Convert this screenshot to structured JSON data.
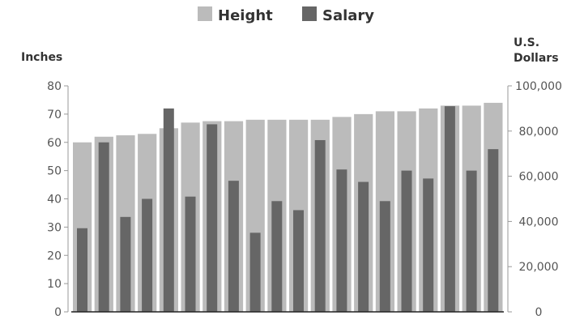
{
  "chart_data": {
    "type": "bar",
    "legend_position": "top-center",
    "grid": false,
    "y_left": {
      "label": "Inches",
      "range": [
        0,
        80
      ],
      "ticks": [
        "0",
        "10",
        "20",
        "30",
        "40",
        "50",
        "60",
        "70",
        "80"
      ]
    },
    "y_right": {
      "label_lines": [
        "U.S.",
        "Dollars"
      ],
      "range": [
        0,
        100000
      ],
      "ticks": [
        "0",
        "20,000",
        "40,000",
        "60,000",
        "80,000",
        "100,000"
      ]
    },
    "series": [
      {
        "name": "Height",
        "axis": "left",
        "color": "#bbbbbb",
        "values": [
          60,
          62,
          62.5,
          63,
          65,
          67,
          67.5,
          67.5,
          68,
          68,
          68,
          68,
          69,
          70,
          71,
          71,
          72,
          73,
          73,
          74
        ]
      },
      {
        "name": "Salary",
        "axis": "right",
        "color": "#666666",
        "values": [
          37000,
          75000,
          42000,
          50000,
          90000,
          51000,
          83000,
          58000,
          35000,
          49000,
          45000,
          76000,
          63000,
          57500,
          49000,
          62500,
          59000,
          91000,
          62500,
          72000
        ]
      }
    ]
  }
}
